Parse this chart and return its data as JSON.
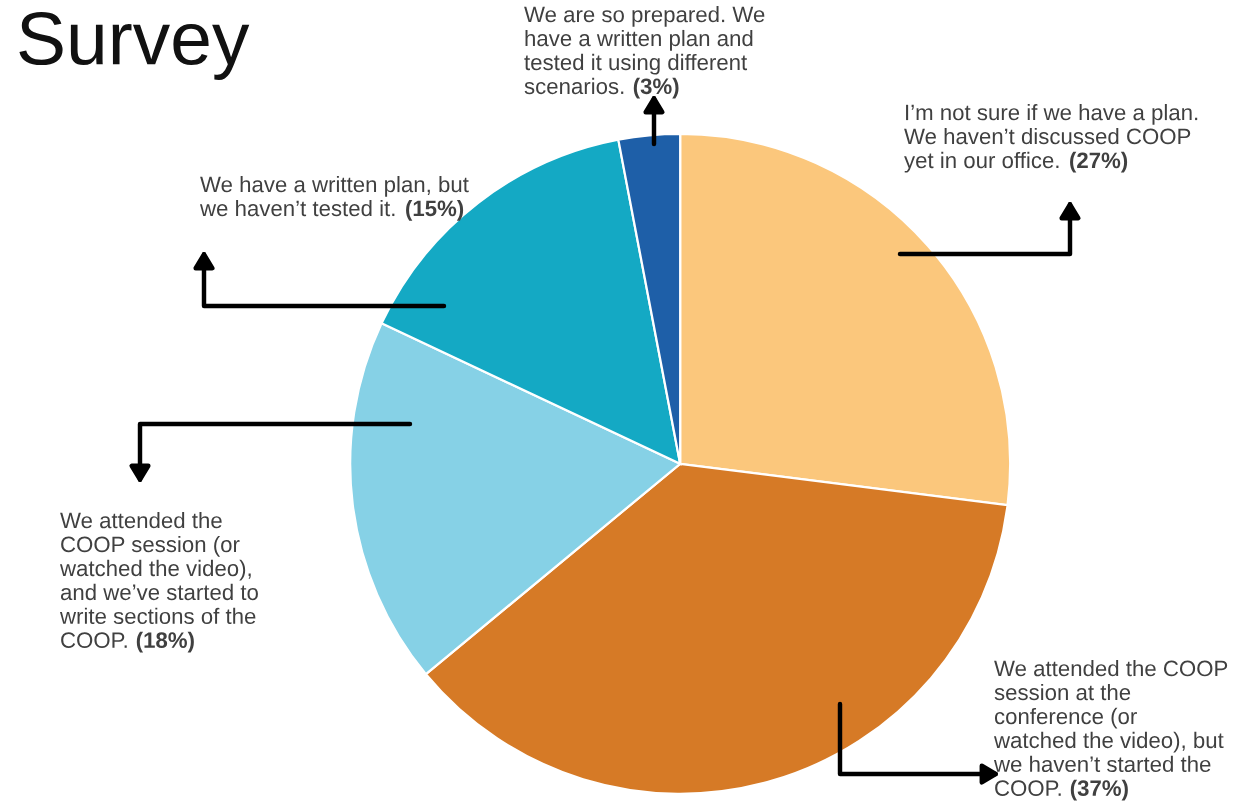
{
  "chart_data": {
    "type": "pie",
    "title": "Survey",
    "categories": [
      "I’m not sure if we have a plan.\nWe haven’t discussed COOP\nyet in our office.",
      "We attended the COOP\nsession at the\nconference (or\nwatched the video), but\nwe haven’t started the\nCOOP.",
      "We attended the\nCOOP session (or\nwatched the video),\nand we’ve started to\nwrite sections of the\nCOOP.",
      "We have a written plan, but\nwe haven’t tested it.",
      "We are so prepared. We\nhave a written plan and\ntested it using different\nscenarios."
    ],
    "values": [
      27,
      37,
      18,
      15,
      3
    ],
    "value_labels": [
      "(27%)",
      "(37%)",
      "(18%)",
      "(15%)",
      "(3%)"
    ],
    "colors": [
      "#fbc77c",
      "#d67a26",
      "#86d1e6",
      "#14a9c4",
      "#1e5fa8"
    ],
    "legend": false
  }
}
